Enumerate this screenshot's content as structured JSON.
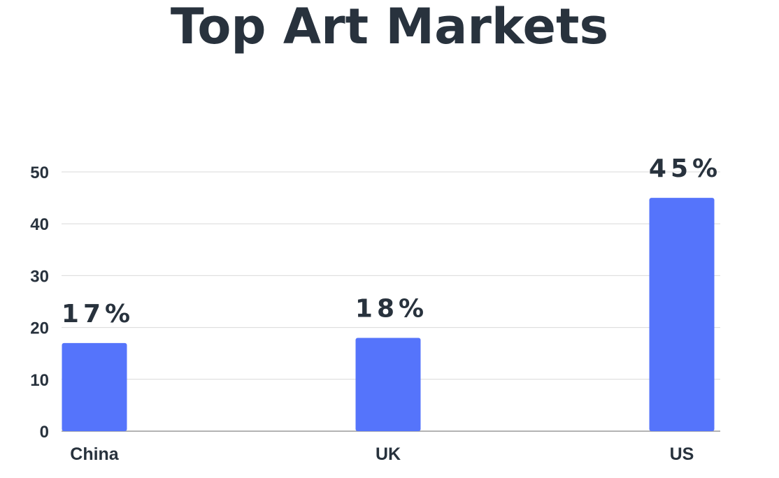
{
  "chart_data": {
    "type": "bar",
    "title": "Top Art Markets",
    "categories": [
      "China",
      "UK",
      "US"
    ],
    "values": [
      17,
      18,
      45
    ],
    "data_labels": [
      "17%",
      "18%",
      "45%"
    ],
    "ylim": [
      0,
      50
    ],
    "yticks": [
      0,
      10,
      20,
      30,
      40,
      50
    ],
    "xlabel": "",
    "ylabel": "",
    "grid": true,
    "bar_color": "#5574fb"
  }
}
